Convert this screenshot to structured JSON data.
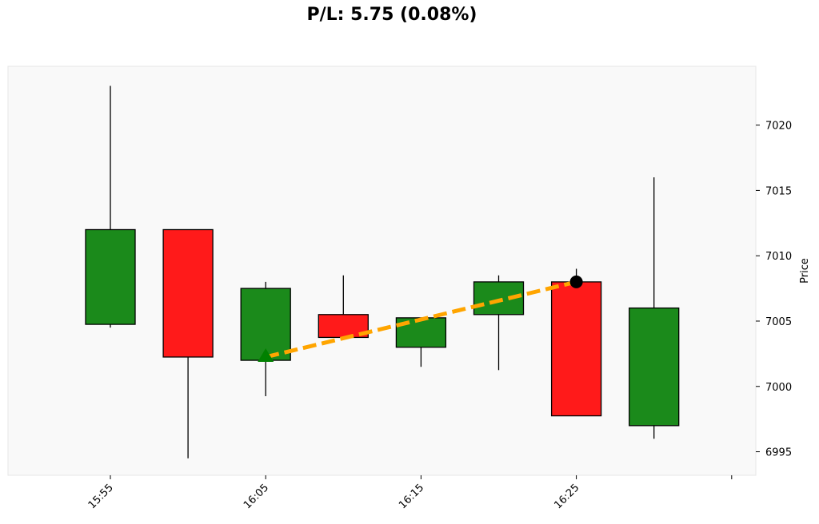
{
  "chart_data": {
    "type": "candlestick",
    "title": "P/L: 5.75 (0.08%)",
    "ylabel": "Price",
    "xlabel": "",
    "ylim": [
      6993.2,
      7024.5
    ],
    "yticks": [
      6995,
      7000,
      7005,
      7010,
      7015,
      7020
    ],
    "xticks": [
      "15:55",
      "16:05",
      "16:15",
      "16:25",
      ""
    ],
    "candles": [
      {
        "time": "15:55",
        "open": 7004.75,
        "high": 7023.0,
        "low": 7004.5,
        "close": 7012.0
      },
      {
        "time": "16:00",
        "open": 7012.0,
        "high": 7012.0,
        "low": 6994.5,
        "close": 7002.25
      },
      {
        "time": "16:05",
        "open": 7002.0,
        "high": 7008.0,
        "low": 6999.25,
        "close": 7007.5
      },
      {
        "time": "16:10",
        "open": 7005.5,
        "high": 7008.5,
        "low": 7003.75,
        "close": 7003.75
      },
      {
        "time": "16:15",
        "open": 7003.0,
        "high": 7005.25,
        "low": 7001.5,
        "close": 7005.25
      },
      {
        "time": "16:20",
        "open": 7005.5,
        "high": 7008.5,
        "low": 7001.25,
        "close": 7008.0
      },
      {
        "time": "16:25",
        "open": 7008.0,
        "high": 7009.0,
        "low": 6997.75,
        "close": 6997.75
      },
      {
        "time": "16:30",
        "open": 6997.0,
        "high": 7016.0,
        "low": 6996.0,
        "close": 7006.0
      }
    ],
    "trade": {
      "entry": {
        "index": 2,
        "price": 7002.25,
        "marker": "triangle-up",
        "color": "#008000"
      },
      "exit": {
        "index": 6,
        "price": 7008.0,
        "marker": "circle",
        "color": "#000000"
      },
      "line_color": "#FFA500",
      "line_style": "dashed"
    },
    "colors": {
      "up": "#1b8a1b",
      "down": "#ff1a1a",
      "background": "#f9f9f9"
    }
  }
}
